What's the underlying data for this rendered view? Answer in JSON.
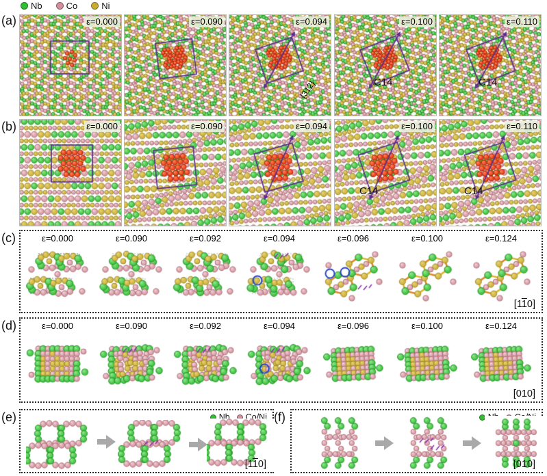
{
  "colors": {
    "nb": "#33bd33",
    "co": "#d2909b",
    "ni": "#c9ad33",
    "c14_red": "#e83010",
    "box_purple": "#5b2d8e",
    "highlight_blue": "#2244cc",
    "arrow_gray": "#a9a9a9"
  },
  "legend_top": {
    "items": [
      {
        "name": "Nb",
        "color": "#33bd33"
      },
      {
        "name": "Co",
        "color": "#d2909b"
      },
      {
        "name": "Ni",
        "color": "#c9ad33"
      }
    ]
  },
  "panels": {
    "a": {
      "label": "(a)",
      "frames": [
        {
          "strain": "ε=0.000"
        },
        {
          "strain": "ε=0.090"
        },
        {
          "strain": "ε=0.094",
          "plane_label": "{312}"
        },
        {
          "strain": "ε=0.100",
          "phase_label": "C14"
        },
        {
          "strain": "ε=0.110",
          "phase_label": "C14"
        }
      ]
    },
    "b": {
      "label": "(b)",
      "frames": [
        {
          "strain": "ε=0.000"
        },
        {
          "strain": "ε=0.090"
        },
        {
          "strain": "ε=0.094"
        },
        {
          "strain": "ε=0.100",
          "phase_label": "C14"
        },
        {
          "strain": "ε=0.110",
          "phase_label": "C14"
        }
      ]
    },
    "c": {
      "label": "(c)",
      "strains": [
        "ε=0.000",
        "ε=0.090",
        "ε=0.092",
        "ε=0.094",
        "ε=0.096",
        "ε=0.100",
        "ε=0.124"
      ],
      "direction": {
        "pre": "[1",
        "bar": "1",
        "post": "0]"
      }
    },
    "d": {
      "label": "(d)",
      "strains": [
        "ε=0.000",
        "ε=0.090",
        "ε=0.092",
        "ε=0.094",
        "ε=0.096",
        "ε=0.100",
        "ε=0.124"
      ],
      "direction": {
        "pre": "[010]",
        "bar": "",
        "post": ""
      }
    },
    "e": {
      "label": "(e)",
      "legend": [
        {
          "name": "Nb",
          "color": "#33bd33"
        },
        {
          "name": "Co/Ni",
          "color": "#d2909b"
        }
      ],
      "direction": {
        "pre": "[1",
        "bar": "1",
        "post": "0]"
      }
    },
    "f": {
      "label": "(f)",
      "legend": [
        {
          "name": "Nb",
          "color": "#33bd33"
        },
        {
          "name": "Co/Ni",
          "color": "#d2909b"
        }
      ],
      "direction": {
        "pre": "[010]",
        "bar": "",
        "post": ""
      }
    }
  }
}
